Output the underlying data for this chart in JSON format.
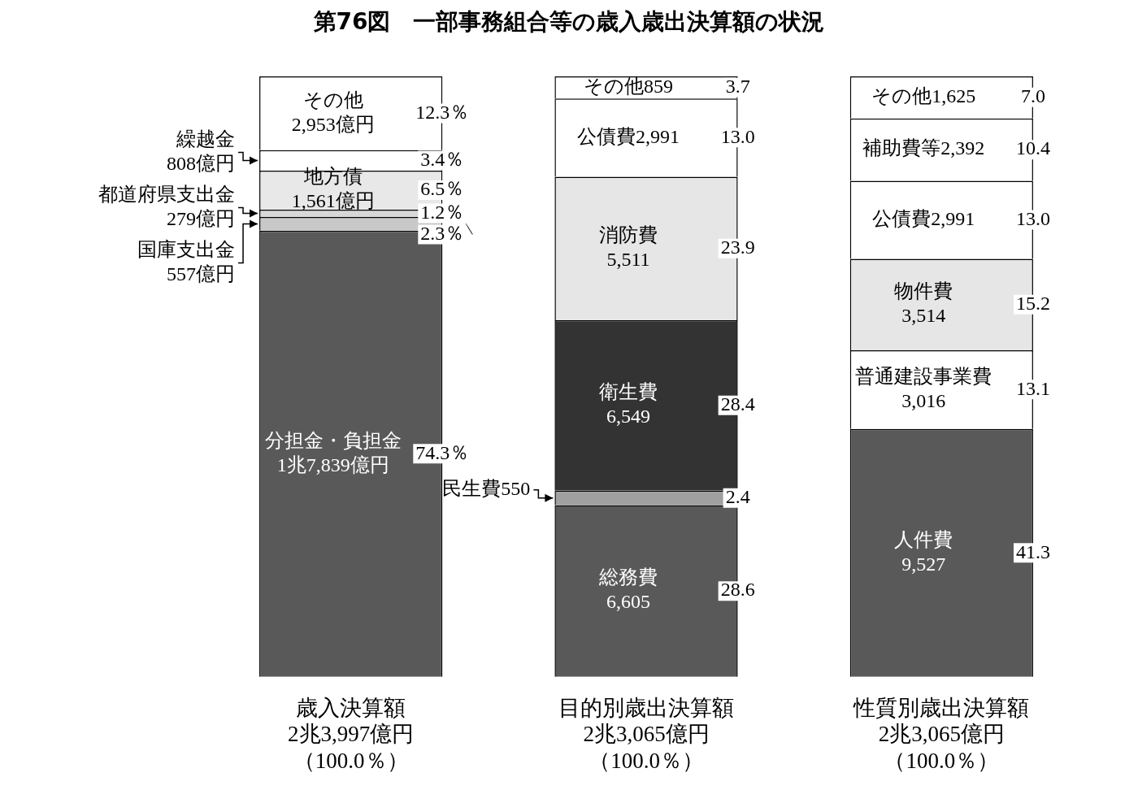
{
  "chart_data": {
    "type": "bar",
    "title": "第76図　一部事務組合等の歳入歳出決算額の状況",
    "categories": [
      "歳入決算額2兆3,997億円（100.0％）",
      "目的別歳出決算額2兆3,065億円（100.0％）",
      "性質別歳出決算額2兆3,065億円（100.0％）"
    ],
    "stacked": true,
    "ylim": [
      0,
      100
    ],
    "tick_labels": "x",
    "grid": false,
    "legend": false,
    "series": [
      {
        "values": [
          74.3,
          28.6,
          41.3
        ],
        "colors": [
          "#595959",
          "#595959",
          "#595959"
        ],
        "value_labels": [
          "74.3％",
          "28.6",
          "41.3"
        ]
      },
      {
        "values": [
          2.3,
          2.4,
          13.1
        ],
        "colors": [
          "#c8c8c8",
          "#a0a0a0",
          "#ffffff"
        ],
        "value_labels": [
          "2.3％",
          "2.4",
          "13.1"
        ]
      },
      {
        "values": [
          1.2,
          28.4,
          15.2
        ],
        "colors": [
          "#d8d8d8",
          "#333333",
          "#e6e6e6"
        ],
        "value_labels": [
          "1.2％",
          "28.4",
          "15.2"
        ]
      },
      {
        "values": [
          6.5,
          23.9,
          13.0
        ],
        "colors": [
          "#e8e8e8",
          "#e6e6e6",
          "#ffffff"
        ],
        "value_labels": [
          "6.5％",
          "23.9",
          "13.0"
        ]
      },
      {
        "values": [
          3.4,
          13.0,
          10.4
        ],
        "colors": [
          "#ffffff",
          "#ffffff",
          "#ffffff"
        ],
        "value_labels": [
          "3.4％",
          "13.0",
          "10.4"
        ]
      },
      {
        "values": [
          12.3,
          3.7,
          7.0
        ],
        "colors": [
          "#ffffff",
          "#ffffff",
          "#ffffff"
        ],
        "value_labels": [
          "12.3％",
          "3.7",
          "7.0"
        ]
      }
    ],
    "annotations": [
      "分担金・負担金\n1兆7,839億円",
      "国庫支出金\n557億円",
      "都道府県支出金\n279億円",
      "地方債\n1,561億円",
      "繰越金\n808億円",
      "その他\n2,953億円",
      "総務費\n6,605",
      "民生費550",
      "衛生費\n6,549",
      "消防費\n5,511",
      "公債費2,991",
      "その他859",
      "人件費\n9,527",
      "普通建設事業費\n3,016",
      "物件費\n3,514",
      "公債費2,991",
      "補助費等2,392",
      "その他1,625"
    ]
  }
}
